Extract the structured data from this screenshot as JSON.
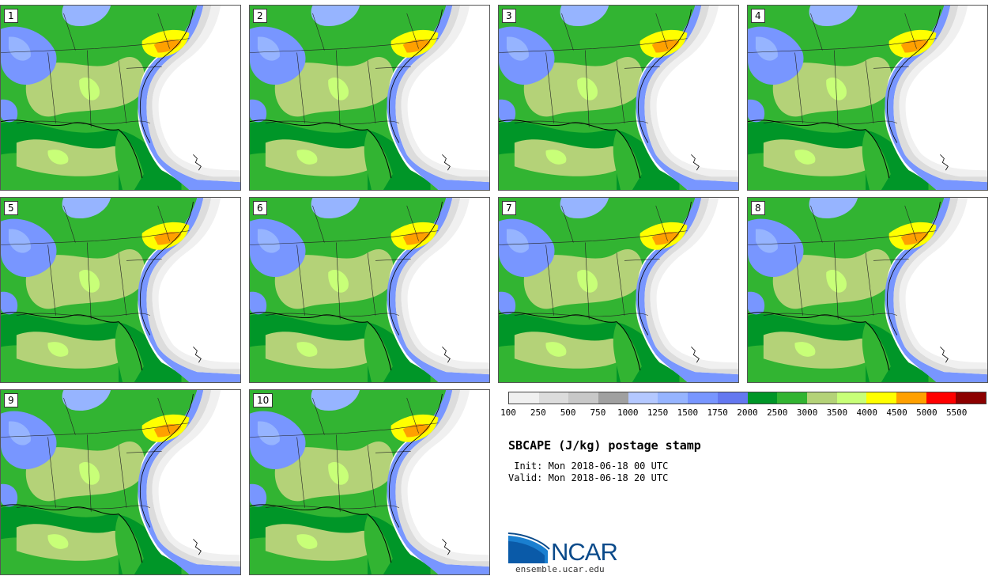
{
  "stamps": [
    {
      "label": "1"
    },
    {
      "label": "2"
    },
    {
      "label": "3"
    },
    {
      "label": "4"
    },
    {
      "label": "5"
    },
    {
      "label": "6"
    },
    {
      "label": "7"
    },
    {
      "label": "8"
    },
    {
      "label": "9"
    },
    {
      "label": "10"
    }
  ],
  "colorbar": {
    "colors": [
      "#f0f0f0",
      "#dcdcdc",
      "#c8c8c8",
      "#a0a0a0",
      "#b4c8ff",
      "#96b4ff",
      "#7896ff",
      "#6478f0",
      "#009628",
      "#32b432",
      "#b4d278",
      "#c8ff78",
      "#ffff00",
      "#ffa000",
      "#ff0000",
      "#8c0000"
    ],
    "labels": [
      "100",
      "250",
      "500",
      "750",
      "1000",
      "1250",
      "1500",
      "1750",
      "2000",
      "2500",
      "3000",
      "3500",
      "4000",
      "4500",
      "5000",
      "5500"
    ]
  },
  "title": "SBCAPE (J/kg) postage stamp",
  "init": " Init: Mon 2018-06-18 00 UTC",
  "valid": "Valid: Mon 2018-06-18 20 UTC",
  "logo": {
    "text": "NCAR",
    "url": "ensemble.ucar.edu"
  }
}
